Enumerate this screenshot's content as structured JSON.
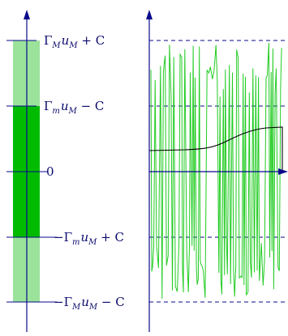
{
  "diagram": {
    "colors": {
      "axis": "#0a0a8c",
      "outer_band": "#9be39b",
      "inner_band": "#00bb00",
      "signal": "#22cc22",
      "average": "#000000"
    },
    "levels": [
      {
        "id": "top",
        "main": "Γ",
        "sub": "M",
        "var": "u",
        "var_sub": "M",
        "rest": " + C"
      },
      {
        "id": "upper",
        "main": "Γ",
        "sub": "m",
        "var": "u",
        "var_sub": "M",
        "rest": " − C"
      },
      {
        "id": "zero",
        "text": "0"
      },
      {
        "id": "lower",
        "main": "−Γ",
        "sub": "m",
        "var": "u",
        "var_sub": "M",
        "rest": " + C"
      },
      {
        "id": "bottom",
        "main": "−Γ",
        "sub": "M",
        "var": "u",
        "var_sub": "M",
        "rest": " − C"
      }
    ]
  }
}
